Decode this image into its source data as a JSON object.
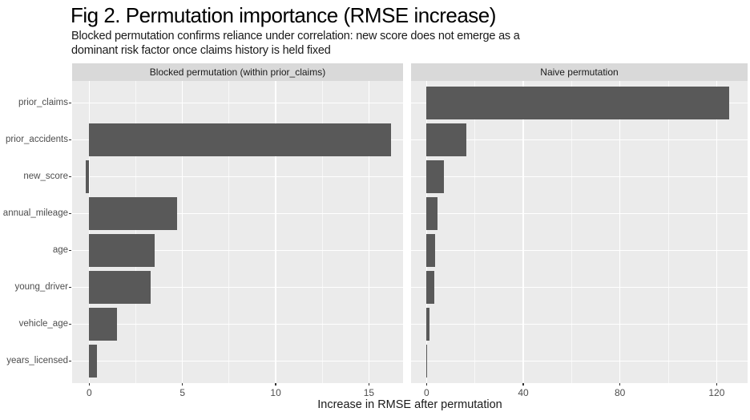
{
  "title": "Fig 2. Permutation importance (RMSE increase)",
  "subtitle": "Blocked permutation confirms reliance under correlation: new score does not emerge as a\ndominant risk factor once claims history is held fixed",
  "chart_data": {
    "type": "bar",
    "orientation": "horizontal",
    "title": "Fig 2. Permutation importance (RMSE increase)",
    "subtitle": "Blocked permutation confirms reliance under correlation: new score does not emerge as a dominant risk factor once claims history is held fixed",
    "xlabel": "Increase in RMSE after permutation",
    "ylabel": "",
    "grid": true,
    "legend": "none",
    "categories": [
      "prior_claims",
      "prior_accidents",
      "new_score",
      "annual_mileage",
      "age",
      "young_driver",
      "vehicle_age",
      "years_licensed"
    ],
    "panels": [
      {
        "label": "Blocked permutation (within prior_claims)",
        "values": [
          0.0,
          16.2,
          -0.2,
          4.7,
          3.5,
          3.3,
          1.5,
          0.4
        ],
        "xlim": [
          -0.92,
          16.83
        ],
        "major_ticks": [
          0,
          5,
          10,
          15
        ],
        "minor_ticks": [
          2.5,
          7.5,
          12.5
        ]
      },
      {
        "label": "Naive permutation",
        "values": [
          125.2,
          16.4,
          7.2,
          4.4,
          3.5,
          3.2,
          1.1,
          0.2
        ],
        "xlim": [
          -6.4,
          132.8
        ],
        "major_ticks": [
          0,
          40,
          80,
          120
        ],
        "minor_ticks": [
          20,
          60,
          100
        ]
      }
    ],
    "style": {
      "bar_color": "#595959",
      "panel_bg": "#ebebeb",
      "strip_bg": "#d9d9d9",
      "grid_color": "#ffffff",
      "axis_text_color": "#4d4d4d",
      "strip_text_color": "#1a1a1a",
      "tick_mark_color": "#333333",
      "background": "#ffffff"
    }
  }
}
